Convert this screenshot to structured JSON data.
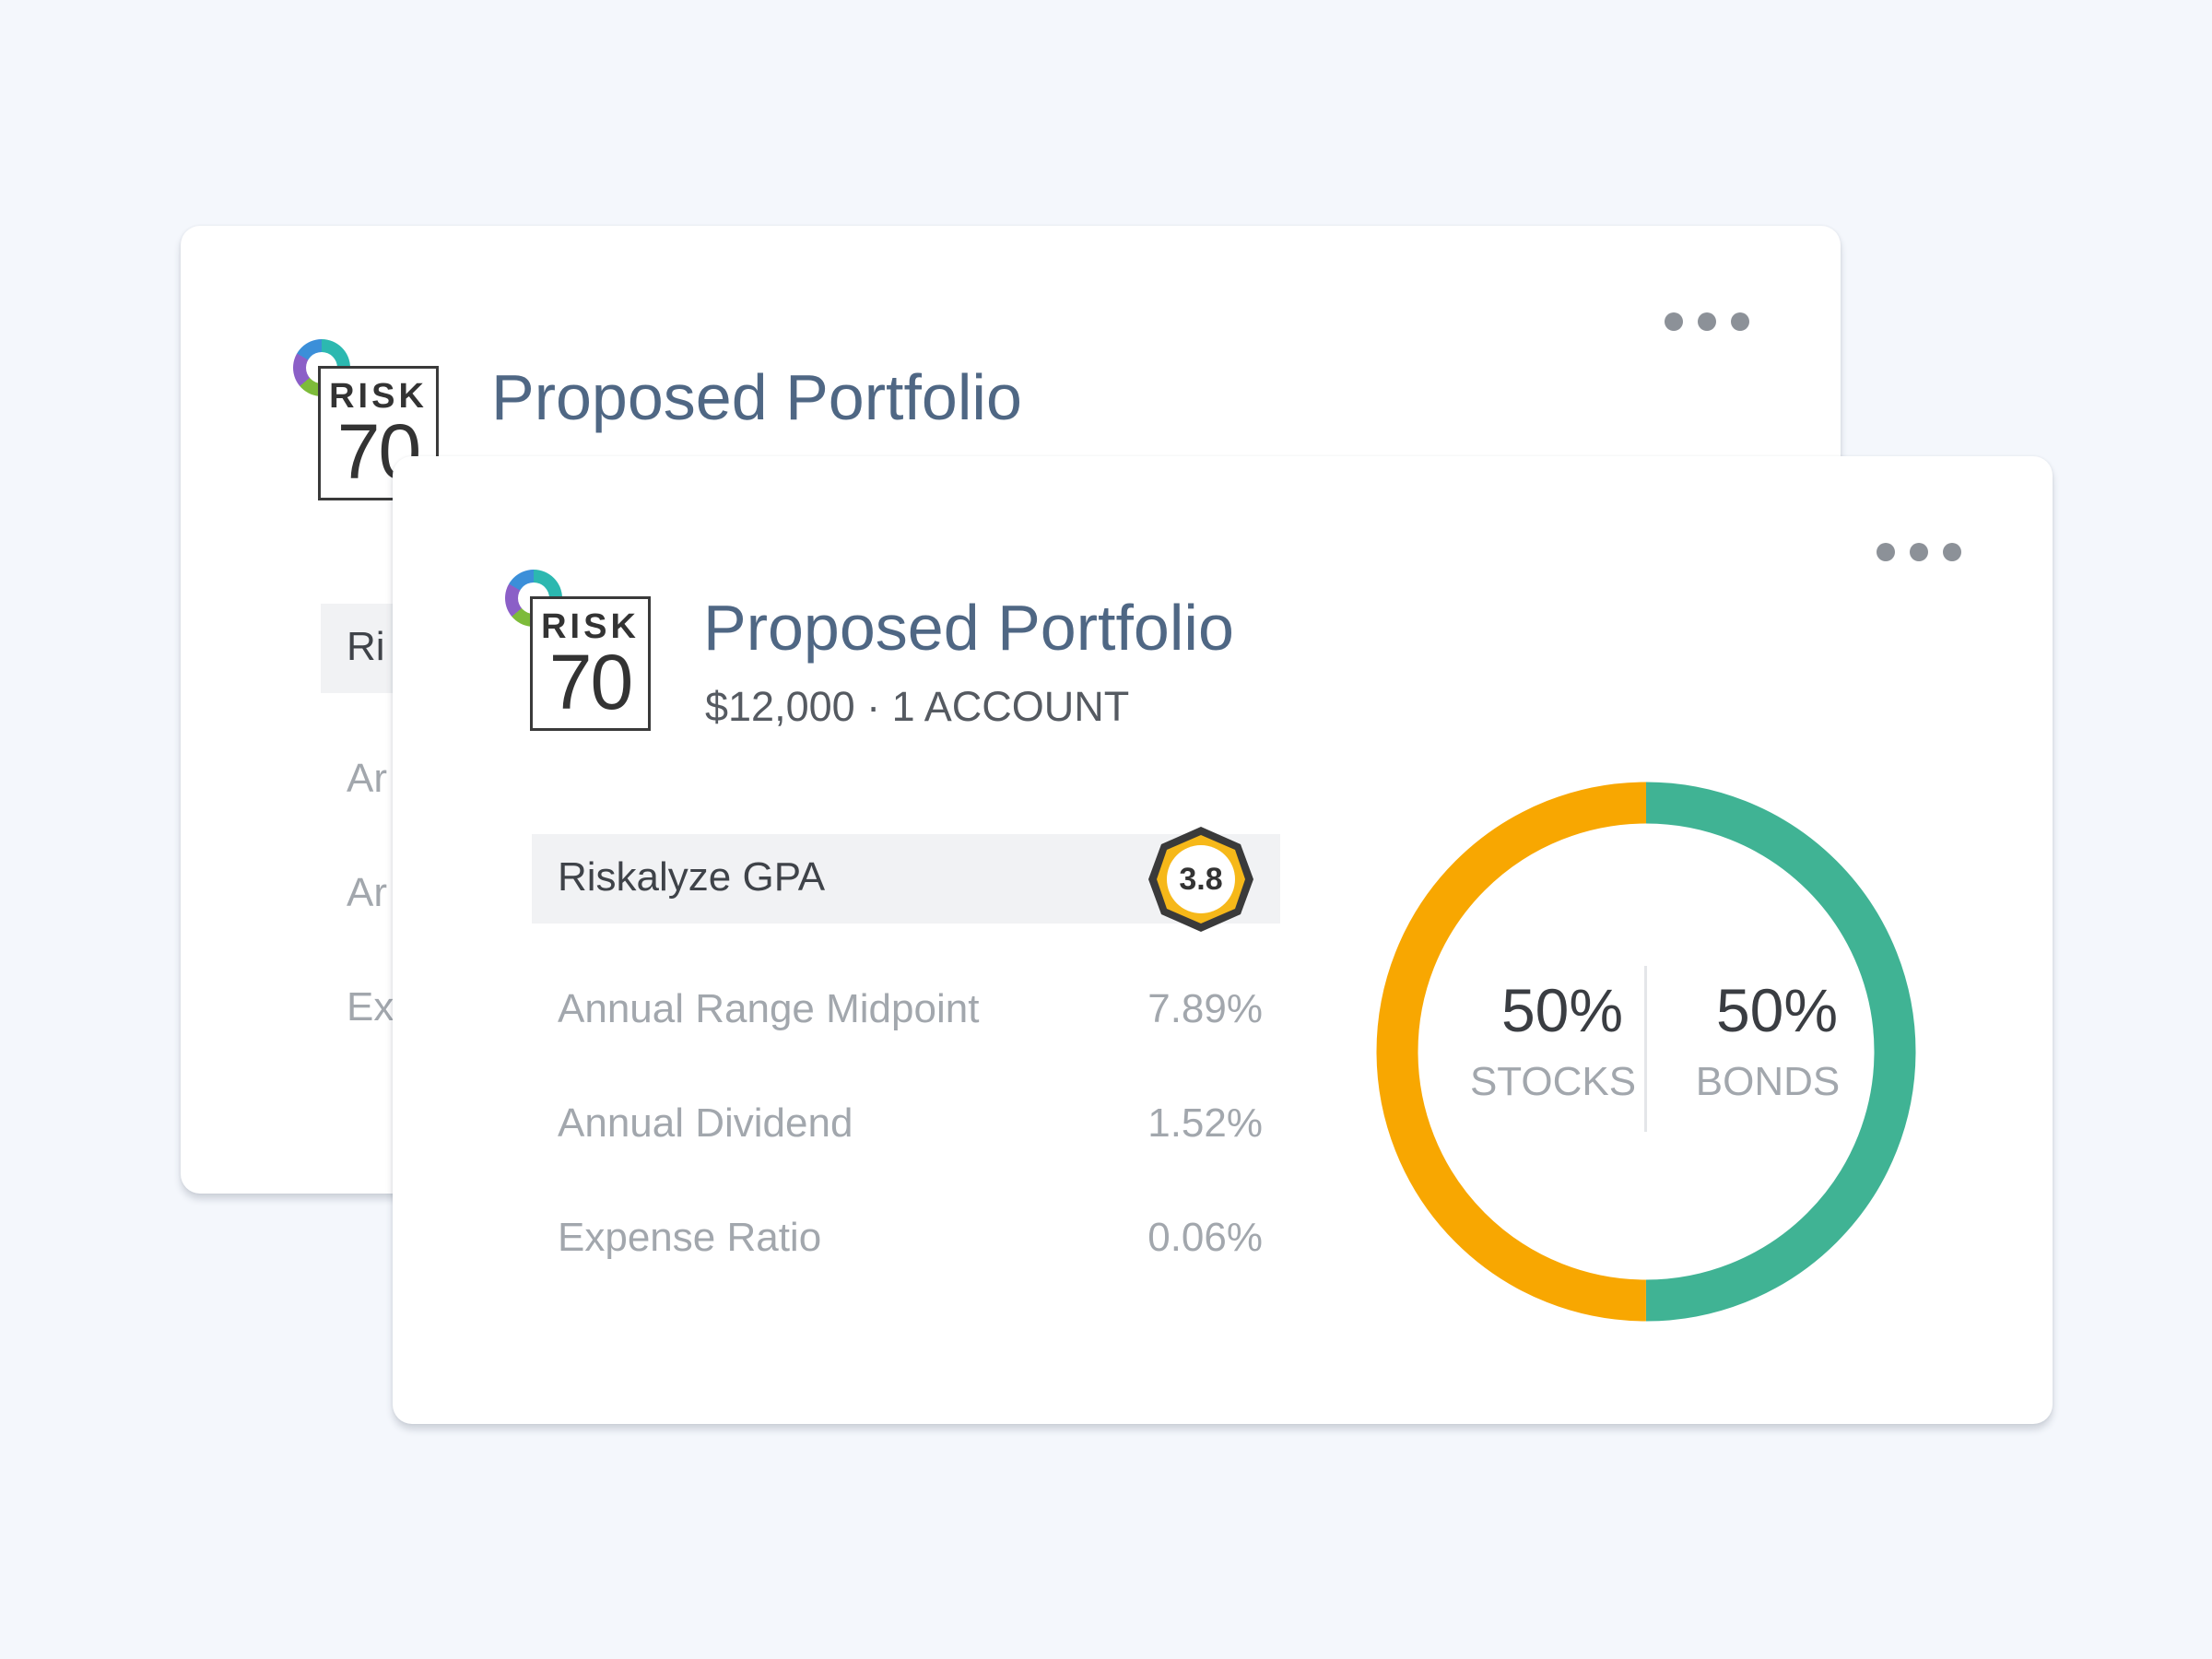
{
  "cards": {
    "back": {
      "risk_label": "RISK",
      "risk_score": "70",
      "title": "Proposed Portfolio",
      "gpa_label_fragment": "Ri",
      "metric_fragments": [
        "Ar",
        "Ar",
        "Ex"
      ]
    },
    "front": {
      "risk_label": "RISK",
      "risk_score": "70",
      "title": "Proposed Portfolio",
      "subtitle": "$12,000 · 1 ACCOUNT",
      "gpa": {
        "label": "Riskalyze GPA",
        "value": "3.8",
        "badge_color": "#f6b819"
      },
      "metrics": [
        {
          "label": "Annual Range Midpoint",
          "value": "7.89%"
        },
        {
          "label": "Annual Dividend",
          "value": "1.52%"
        },
        {
          "label": "Expense Ratio",
          "value": "0.06%"
        }
      ],
      "allocation": [
        {
          "percent_label": "50%",
          "category": "STOCKS",
          "share": 0.5,
          "color": "#f8a701"
        },
        {
          "percent_label": "50%",
          "category": "BONDS",
          "share": 0.5,
          "color": "#40b394"
        }
      ]
    }
  },
  "icons": {
    "more": "more-horizontal-icon",
    "logo": "riskalyze-logo-icon"
  }
}
